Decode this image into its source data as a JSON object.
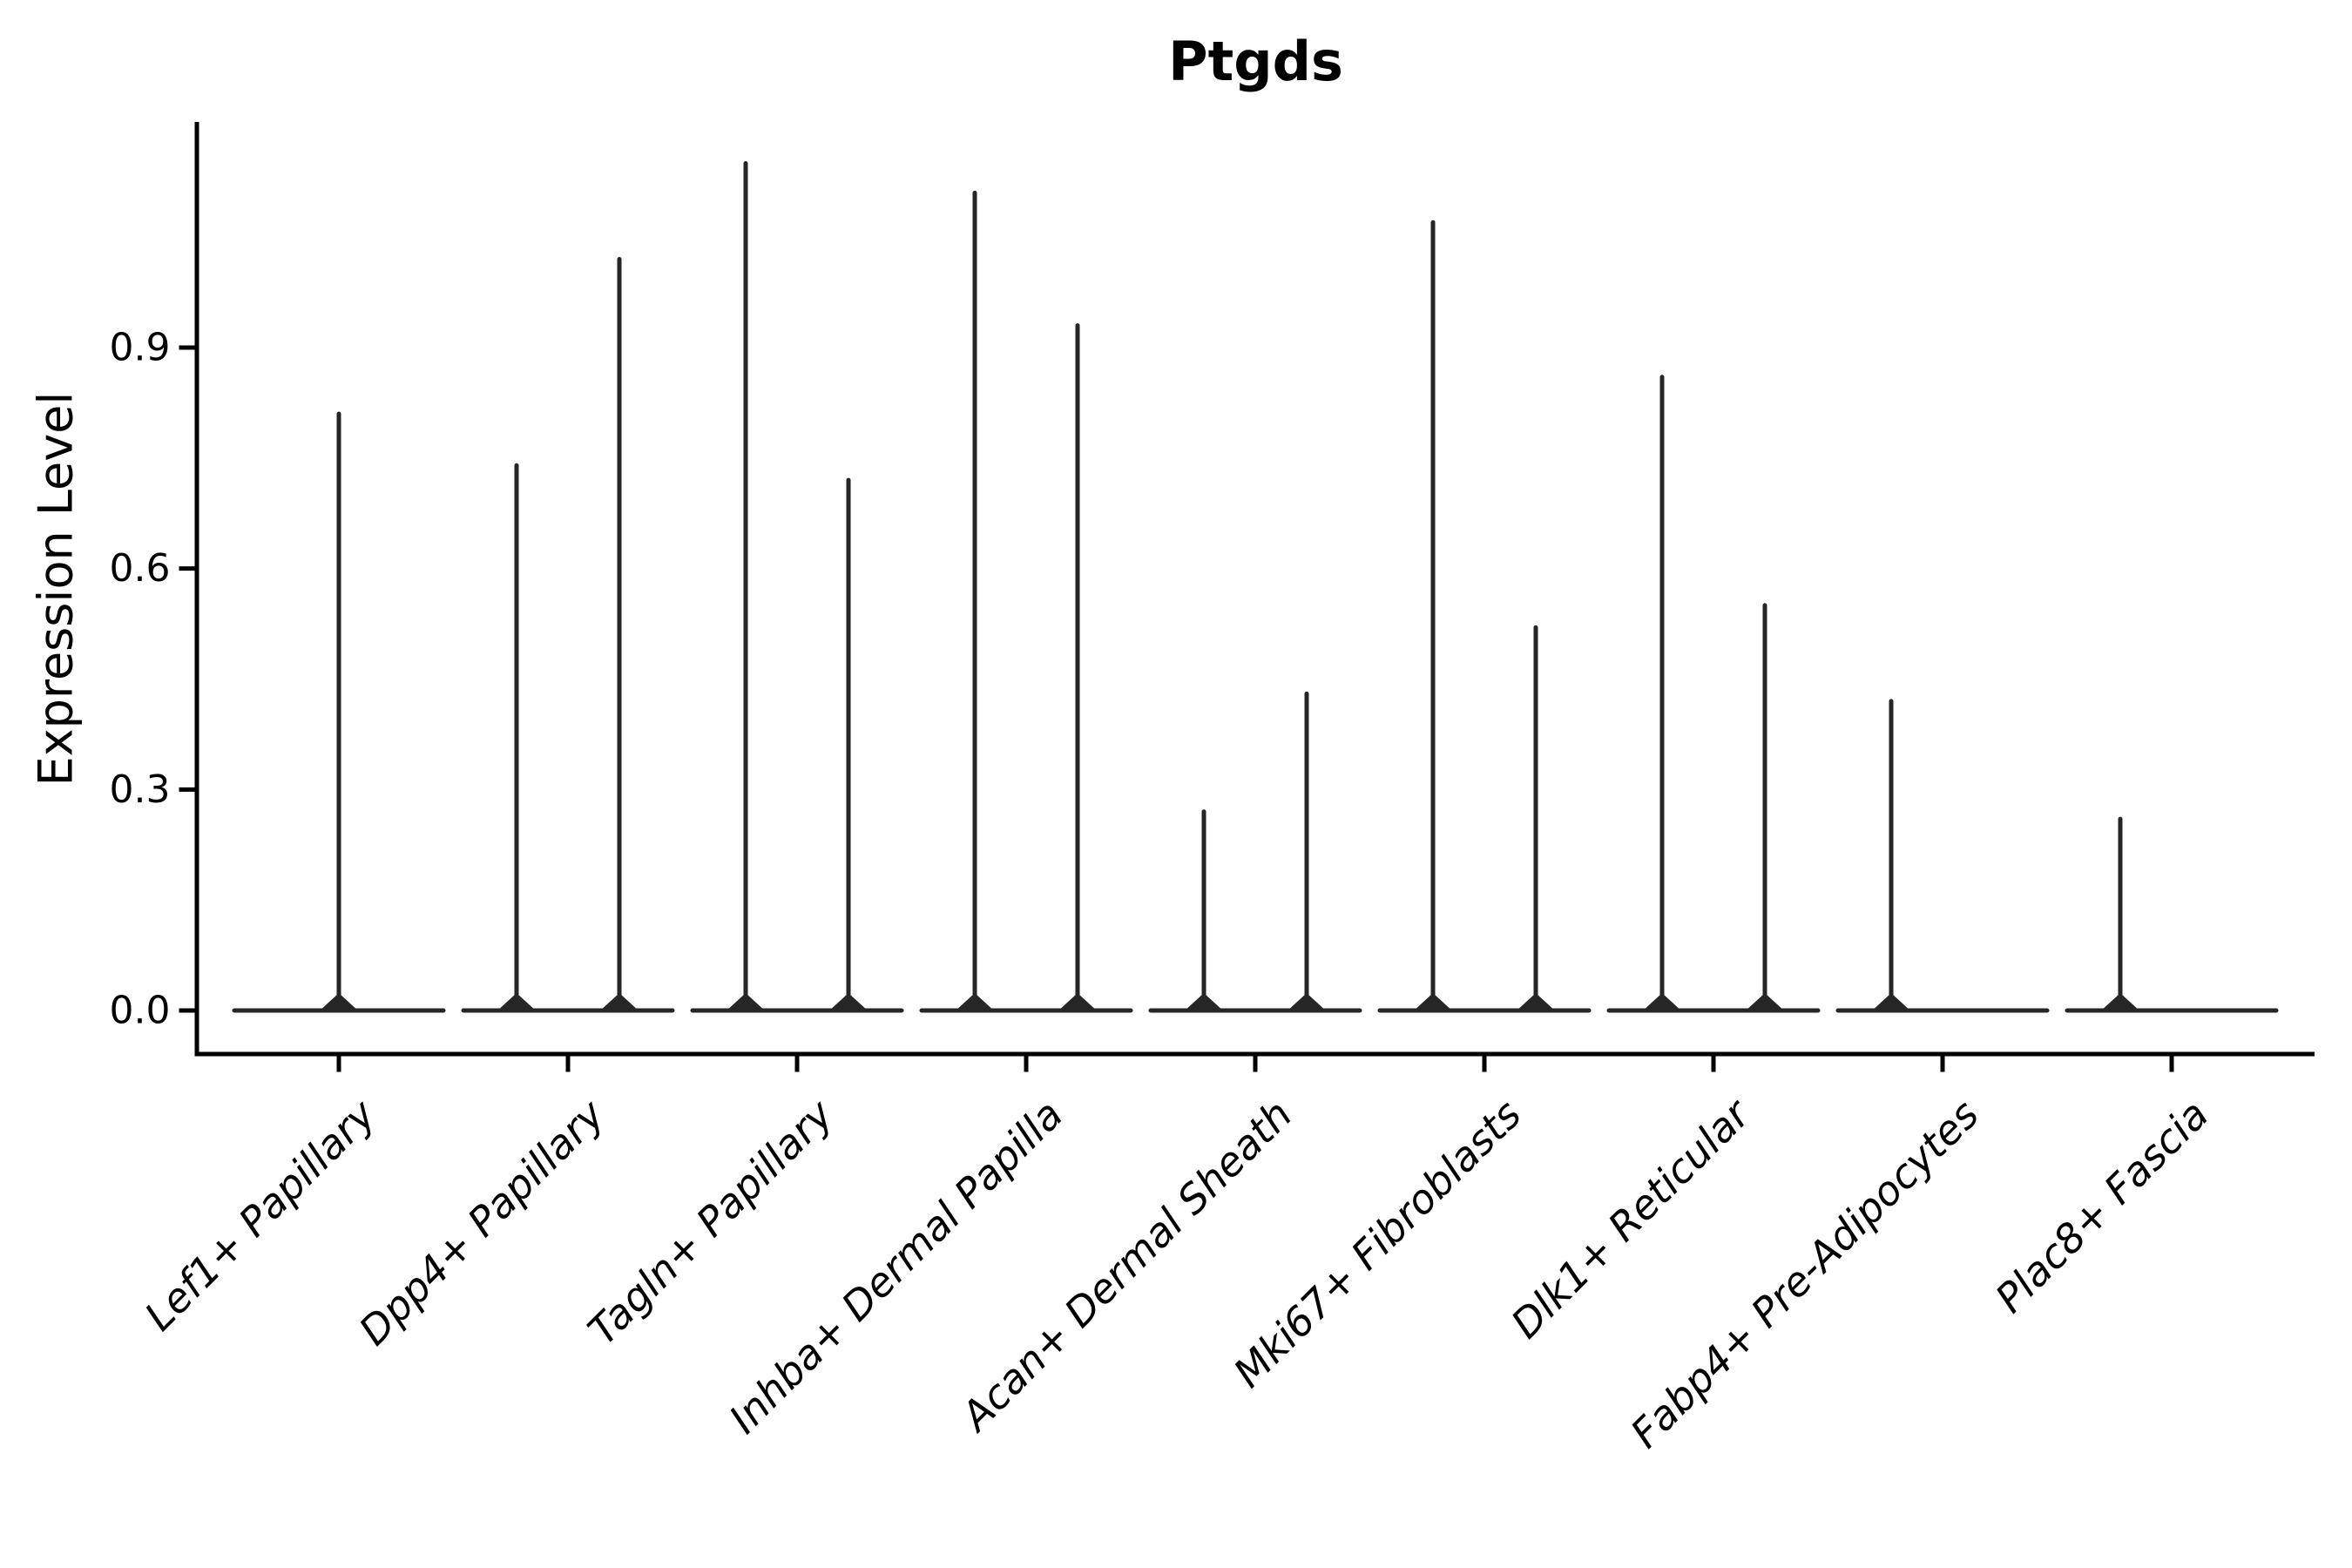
{
  "chart_data": {
    "type": "violin",
    "title": "Ptgds",
    "ylabel": "Expression Level",
    "xlabel": "",
    "yticks": [
      "0.0",
      "0.3",
      "0.6",
      "0.9"
    ],
    "ytick_values": [
      0.0,
      0.3,
      0.6,
      0.9
    ],
    "ylim": [
      -0.06,
      1.21
    ],
    "grid": false,
    "legend": "none",
    "baseline_value": 0.0,
    "categories": [
      "Lef1+ Papillary",
      "Dpp4+ Papillary",
      "Tagln+ Papillary",
      "Inhba+ Dermal Papilla",
      "Acan+ Dermal Sheath",
      "Mki67+ Fibroblasts",
      "Dlk1+ Reticular",
      "Fabp4+ Pre-Adipocytes",
      "Plac8+ Fascia"
    ],
    "violins": [
      {
        "category": "Lef1+ Papillary",
        "spikes": [
          {
            "position": "center",
            "max": 0.81
          }
        ]
      },
      {
        "category": "Dpp4+ Papillary",
        "spikes": [
          {
            "position": "left",
            "max": 0.74
          },
          {
            "position": "right",
            "max": 1.02
          }
        ]
      },
      {
        "category": "Tagln+ Papillary",
        "spikes": [
          {
            "position": "left",
            "max": 1.15
          },
          {
            "position": "right",
            "max": 0.72
          }
        ]
      },
      {
        "category": "Inhba+ Dermal Papilla",
        "spikes": [
          {
            "position": "left",
            "max": 1.11
          },
          {
            "position": "right",
            "max": 0.93
          }
        ]
      },
      {
        "category": "Acan+ Dermal Sheath",
        "spikes": [
          {
            "position": "left",
            "max": 0.27
          },
          {
            "position": "right",
            "max": 0.43
          }
        ]
      },
      {
        "category": "Mki67+ Fibroblasts",
        "spikes": [
          {
            "position": "left",
            "max": 1.07
          },
          {
            "position": "right",
            "max": 0.52
          }
        ]
      },
      {
        "category": "Dlk1+ Reticular",
        "spikes": [
          {
            "position": "left",
            "max": 0.86
          },
          {
            "position": "right",
            "max": 0.55
          }
        ]
      },
      {
        "category": "Fabp4+ Pre-Adipocytes",
        "spikes": [
          {
            "position": "left",
            "max": 0.42
          }
        ]
      },
      {
        "category": "Plac8+ Fascia",
        "spikes": [
          {
            "position": "left",
            "max": 0.26
          }
        ]
      }
    ],
    "colors": {
      "violin": "#262626",
      "axis": "#000000",
      "text": "#000000",
      "background": "#ffffff"
    }
  }
}
